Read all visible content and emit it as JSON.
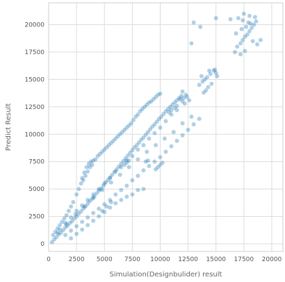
{
  "chart_data": {
    "type": "scatter",
    "title": "",
    "xlabel": "Simulation(Designbulider) result",
    "ylabel": "Predict Result",
    "xlim": [
      0,
      21000
    ],
    "ylim": [
      -700,
      22000
    ],
    "xticks": [
      0,
      2500,
      5000,
      7500,
      10000,
      12500,
      15000,
      17500,
      20000
    ],
    "yticks": [
      0,
      2500,
      5000,
      7500,
      10000,
      12500,
      15000,
      17500,
      20000
    ],
    "grid": true,
    "marker_color": "#1f77b4",
    "marker_alpha": 0.35,
    "series": [
      {
        "points": [
          [
            300,
            150
          ],
          [
            500,
            400
          ],
          [
            700,
            600
          ],
          [
            900,
            850
          ],
          [
            1100,
            1000
          ],
          [
            1300,
            1250
          ],
          [
            1500,
            1500
          ],
          [
            1700,
            1650
          ],
          [
            1900,
            1900
          ],
          [
            2100,
            2050
          ],
          [
            2300,
            2300
          ],
          [
            2500,
            2500
          ],
          [
            2700,
            2750
          ],
          [
            2900,
            2950
          ],
          [
            3100,
            3200
          ],
          [
            3300,
            3400
          ],
          [
            3500,
            3650
          ],
          [
            3700,
            3900
          ],
          [
            3900,
            4100
          ],
          [
            4100,
            4300
          ],
          [
            4300,
            4600
          ],
          [
            4500,
            4850
          ],
          [
            4700,
            5050
          ],
          [
            4900,
            5300
          ],
          [
            5100,
            5600
          ],
          [
            5300,
            5800
          ],
          [
            5500,
            6050
          ],
          [
            5700,
            6300
          ],
          [
            5900,
            6550
          ],
          [
            6100,
            6800
          ],
          [
            6300,
            7050
          ],
          [
            6500,
            7300
          ],
          [
            6700,
            7550
          ],
          [
            6900,
            7800
          ],
          [
            7100,
            8050
          ],
          [
            7300,
            8300
          ],
          [
            7500,
            8550
          ],
          [
            7700,
            8800
          ],
          [
            7900,
            9000
          ],
          [
            8100,
            9250
          ],
          [
            8300,
            9500
          ],
          [
            8500,
            9700
          ],
          [
            8700,
            9950
          ],
          [
            8900,
            10200
          ],
          [
            9100,
            10450
          ],
          [
            9300,
            10700
          ],
          [
            9500,
            10900
          ],
          [
            9700,
            11150
          ],
          [
            9900,
            11400
          ],
          [
            10100,
            11600
          ],
          [
            10300,
            11850
          ],
          [
            10500,
            12100
          ],
          [
            10700,
            12300
          ],
          [
            10900,
            12500
          ],
          [
            11100,
            12700
          ],
          [
            11300,
            12900
          ],
          [
            11500,
            13100
          ],
          [
            11700,
            13300
          ],
          [
            11900,
            13500
          ],
          [
            12100,
            13300
          ],
          [
            12300,
            13600
          ],
          [
            12000,
            13900
          ],
          [
            11500,
            12200
          ],
          [
            11000,
            11800
          ],
          [
            10500,
            11200
          ],
          [
            10000,
            10600
          ],
          [
            9500,
            10100
          ],
          [
            9000,
            9600
          ],
          [
            8500,
            9000
          ],
          [
            8000,
            8600
          ],
          [
            7500,
            8000
          ],
          [
            7000,
            7600
          ],
          [
            6500,
            7000
          ],
          [
            6000,
            6600
          ],
          [
            5500,
            6000
          ],
          [
            5000,
            5500
          ],
          [
            4500,
            5000
          ],
          [
            4000,
            4500
          ],
          [
            3500,
            4000
          ],
          [
            3000,
            3500
          ],
          [
            2500,
            3000
          ],
          [
            2000,
            2400
          ],
          [
            1500,
            1900
          ],
          [
            1000,
            1300
          ],
          [
            3000,
            6000
          ],
          [
            3200,
            6500
          ],
          [
            3400,
            7000
          ],
          [
            3600,
            7300
          ],
          [
            3800,
            7500
          ],
          [
            4000,
            7600
          ],
          [
            4200,
            7700
          ],
          [
            4400,
            8000
          ],
          [
            4600,
            8200
          ],
          [
            4800,
            8400
          ],
          [
            5000,
            8600
          ],
          [
            5200,
            8800
          ],
          [
            5400,
            9000
          ],
          [
            5600,
            9200
          ],
          [
            5800,
            9400
          ],
          [
            6000,
            9600
          ],
          [
            6200,
            9800
          ],
          [
            6400,
            10000
          ],
          [
            6600,
            10200
          ],
          [
            6800,
            10400
          ],
          [
            7000,
            10600
          ],
          [
            7200,
            10800
          ],
          [
            7400,
            11000
          ],
          [
            7600,
            11300
          ],
          [
            7800,
            11600
          ],
          [
            8000,
            11800
          ],
          [
            8200,
            12100
          ],
          [
            8400,
            12300
          ],
          [
            8600,
            12500
          ],
          [
            8800,
            12700
          ],
          [
            9000,
            12900
          ],
          [
            9200,
            13000
          ],
          [
            9400,
            13200
          ],
          [
            9600,
            13400
          ],
          [
            9800,
            13600
          ],
          [
            10000,
            13700
          ],
          [
            2500,
            4500
          ],
          [
            2700,
            5000
          ],
          [
            2900,
            5500
          ],
          [
            3100,
            5800
          ],
          [
            3300,
            6200
          ],
          [
            3500,
            6600
          ],
          [
            3700,
            7000
          ],
          [
            3900,
            7200
          ],
          [
            2200,
            3800
          ],
          [
            2000,
            3400
          ],
          [
            1800,
            3000
          ],
          [
            1600,
            2600
          ],
          [
            1400,
            2300
          ],
          [
            1200,
            2000
          ],
          [
            1000,
            1700
          ],
          [
            800,
            1400
          ],
          [
            600,
            1100
          ],
          [
            400,
            800
          ],
          [
            1500,
            800
          ],
          [
            2000,
            1200
          ],
          [
            2500,
            1600
          ],
          [
            3000,
            2000
          ],
          [
            3500,
            2400
          ],
          [
            4000,
            2800
          ],
          [
            4500,
            3200
          ],
          [
            5000,
            3600
          ],
          [
            5500,
            4000
          ],
          [
            6000,
            4500
          ],
          [
            6500,
            4900
          ],
          [
            7000,
            5300
          ],
          [
            7500,
            5800
          ],
          [
            8000,
            6200
          ],
          [
            8500,
            6700
          ],
          [
            9000,
            7100
          ],
          [
            9500,
            7500
          ],
          [
            10000,
            7900
          ],
          [
            10500,
            8400
          ],
          [
            11000,
            8900
          ],
          [
            11500,
            9400
          ],
          [
            12000,
            9900
          ],
          [
            12500,
            10400
          ],
          [
            13000,
            10900
          ],
          [
            13500,
            11400
          ],
          [
            12800,
            11600
          ],
          [
            12000,
            11000
          ],
          [
            11200,
            10200
          ],
          [
            10400,
            9600
          ],
          [
            9600,
            9000
          ],
          [
            8800,
            8400
          ],
          [
            8000,
            7700
          ],
          [
            7200,
            7000
          ],
          [
            6400,
            6300
          ],
          [
            5600,
            5600
          ],
          [
            4800,
            4900
          ],
          [
            4000,
            4200
          ],
          [
            3200,
            3400
          ],
          [
            2400,
            2700
          ],
          [
            1600,
            1800
          ],
          [
            800,
            1000
          ],
          [
            2000,
            500
          ],
          [
            2500,
            900
          ],
          [
            3000,
            1300
          ],
          [
            3500,
            1700
          ],
          [
            4000,
            2100
          ],
          [
            4500,
            2500
          ],
          [
            5000,
            2900
          ],
          [
            5500,
            3300
          ],
          [
            6000,
            3700
          ],
          [
            6500,
            4000
          ],
          [
            7000,
            4300
          ],
          [
            7500,
            4500
          ],
          [
            8000,
            4900
          ],
          [
            8500,
            5000
          ],
          [
            4800,
            3000
          ],
          [
            5200,
            3400
          ],
          [
            5600,
            3800
          ],
          [
            9800,
            7000
          ],
          [
            10000,
            7200
          ],
          [
            10200,
            7400
          ],
          [
            9600,
            6800
          ],
          [
            7000,
            7400
          ],
          [
            7200,
            7600
          ],
          [
            6800,
            7200
          ],
          [
            8700,
            7500
          ],
          [
            8900,
            7600
          ],
          [
            11000,
            12200
          ],
          [
            11500,
            12600
          ],
          [
            12000,
            13000
          ],
          [
            12200,
            12800
          ],
          [
            11800,
            13200
          ],
          [
            11300,
            12400
          ],
          [
            10800,
            12000
          ],
          [
            12400,
            13400
          ],
          [
            12600,
            13100
          ],
          [
            13500,
            14500
          ],
          [
            13800,
            14800
          ],
          [
            14000,
            15000
          ],
          [
            14200,
            15200
          ],
          [
            14500,
            15500
          ],
          [
            14800,
            15800
          ],
          [
            15000,
            15600
          ],
          [
            14300,
            14300
          ],
          [
            14600,
            14600
          ],
          [
            15100,
            15300
          ],
          [
            13700,
            15300
          ],
          [
            14100,
            14000
          ],
          [
            14400,
            15800
          ],
          [
            13900,
            13800
          ],
          [
            14900,
            15900
          ],
          [
            16300,
            20500
          ],
          [
            16700,
            17500
          ],
          [
            16900,
            18000
          ],
          [
            17200,
            18300
          ],
          [
            17400,
            18600
          ],
          [
            17600,
            18900
          ],
          [
            17800,
            19100
          ],
          [
            18000,
            19400
          ],
          [
            18200,
            19700
          ],
          [
            18400,
            20000
          ],
          [
            18600,
            20300
          ],
          [
            17000,
            20600
          ],
          [
            17500,
            21000
          ],
          [
            18000,
            20800
          ],
          [
            17300,
            19600
          ],
          [
            17700,
            19800
          ],
          [
            18300,
            18500
          ],
          [
            18700,
            18200
          ],
          [
            19000,
            18600
          ],
          [
            17200,
            17300
          ],
          [
            17600,
            17600
          ],
          [
            16800,
            19200
          ],
          [
            17900,
            20200
          ],
          [
            18500,
            20700
          ],
          [
            13000,
            20200
          ],
          [
            13600,
            19800
          ],
          [
            15000,
            20600
          ],
          [
            12800,
            18300
          ],
          [
            17400,
            20400
          ],
          [
            18100,
            20100
          ]
        ]
      }
    ]
  }
}
